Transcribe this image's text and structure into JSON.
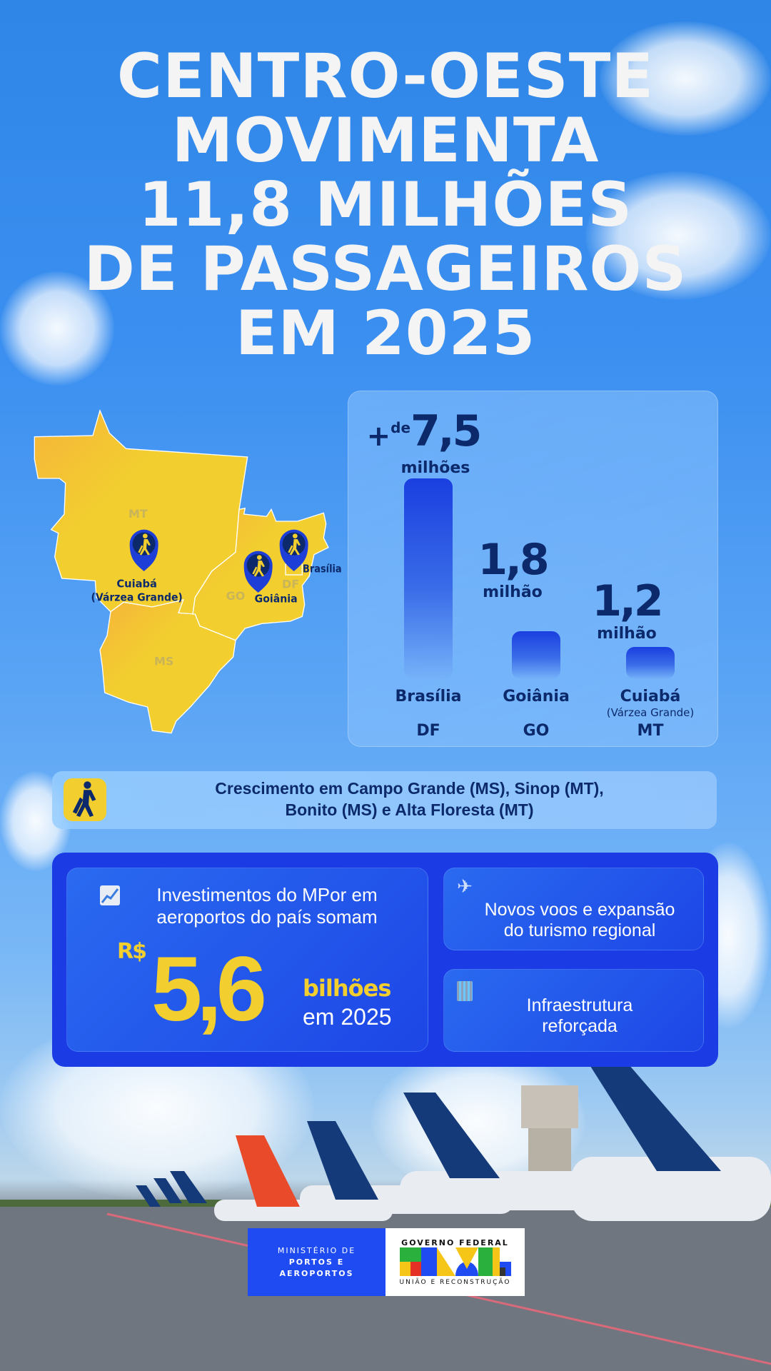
{
  "title": {
    "lines": [
      "CENTRO-OESTE",
      "MOVIMENTA",
      "11,8 MILHÕES",
      "DE PASSAGEIROS",
      "EM 2025"
    ]
  },
  "map": {
    "states": [
      "MT",
      "GO",
      "DF",
      "MS"
    ],
    "cities": [
      {
        "name": "Cuiabá",
        "sub": "(Várzea Grande)",
        "icon": "traveler-pin-icon"
      },
      {
        "name": "Goiânia",
        "icon": "traveler-pin-icon"
      },
      {
        "name": "Brasília",
        "icon": "traveler-pin-icon"
      }
    ],
    "colors": {
      "state_fill": "#f2cf2f",
      "pin": "#0c2a6b"
    }
  },
  "chart_data": {
    "type": "bar",
    "categories": [
      "Brasília",
      "Goiânia",
      "Cuiabá"
    ],
    "category_sub": [
      "",
      "",
      "(Várzea Grande)"
    ],
    "states": [
      "DF",
      "GO",
      "MT"
    ],
    "values": [
      7.5,
      1.8,
      1.2
    ],
    "value_labels": [
      {
        "prefix_plus": "+",
        "prefix": "de",
        "number": "7,5",
        "unit": "milhões"
      },
      {
        "number": "1,8",
        "unit": "milhão"
      },
      {
        "number": "1,2",
        "unit": "milhão"
      }
    ],
    "bar_color": "#1a3fe0"
  },
  "growth": {
    "icon": "traveler-icon",
    "line1": "Crescimento em Campo Grande (MS), Sinop (MT),",
    "line2": "Bonito (MS) e Alta Floresta (MT)"
  },
  "investment": {
    "icon": "chart-increasing-icon",
    "line1": "Investimentos do MPor em",
    "line2": "aeroportos do país somam",
    "currency": "R$",
    "amount": "5,6",
    "unit": "bilhões",
    "period": "em 2025",
    "accent": "#f2cf2f"
  },
  "cards": [
    {
      "icon": "airplane-departure-icon",
      "line1": "Novos voos e expansão",
      "line2": "do turismo regional"
    },
    {
      "icon": "building-icon",
      "line1": "Infraestrutura",
      "line2": "reforçada"
    }
  ],
  "logos": {
    "ministry": [
      "MINISTÉRIO DE",
      "PORTOS E",
      "AEROPORTOS"
    ],
    "gov_top": "GOVERNO FEDERAL",
    "gov_word": "BRASIL",
    "gov_bottom": "UNIÃO E RECONSTRUÇÃO"
  }
}
